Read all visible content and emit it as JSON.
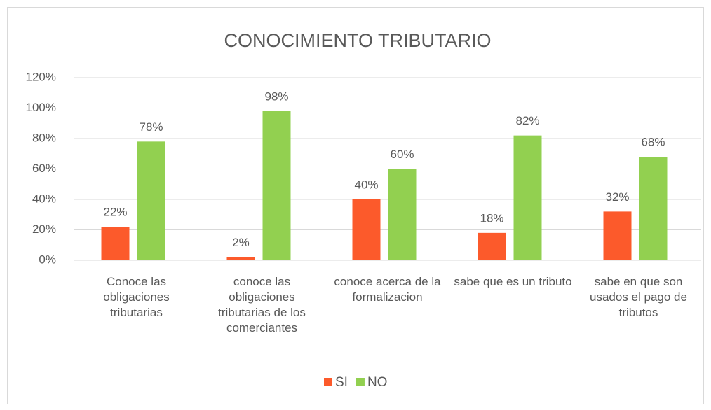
{
  "chart_data": {
    "type": "bar",
    "title": "CONOCIMIENTO TRIBUTARIO",
    "categories": [
      "Conoce las obligaciones tributarias",
      "conoce las obligaciones tributarias de los comerciantes",
      "conoce acerca de la formalizacion",
      "sabe que es un tributo",
      "sabe en que son usados el pago de tributos"
    ],
    "series": [
      {
        "name": "SI",
        "color": "#fc5a2b",
        "values": [
          22,
          2,
          40,
          18,
          32
        ],
        "value_labels": [
          "22%",
          "2%",
          "40%",
          "18%",
          "32%"
        ]
      },
      {
        "name": "NO",
        "color": "#92d050",
        "values": [
          78,
          98,
          60,
          82,
          68
        ],
        "value_labels": [
          "78%",
          "98%",
          "60%",
          "82%",
          "68%"
        ]
      }
    ],
    "ylim": [
      0,
      120
    ],
    "yticks": [
      {
        "value": 0,
        "label": "0%"
      },
      {
        "value": 20,
        "label": "20%"
      },
      {
        "value": 40,
        "label": "40%"
      },
      {
        "value": 60,
        "label": "60%"
      },
      {
        "value": 80,
        "label": "80%"
      },
      {
        "value": 100,
        "label": "100%"
      },
      {
        "value": 120,
        "label": "120%"
      }
    ],
    "grid": true,
    "legend": "bottom"
  }
}
